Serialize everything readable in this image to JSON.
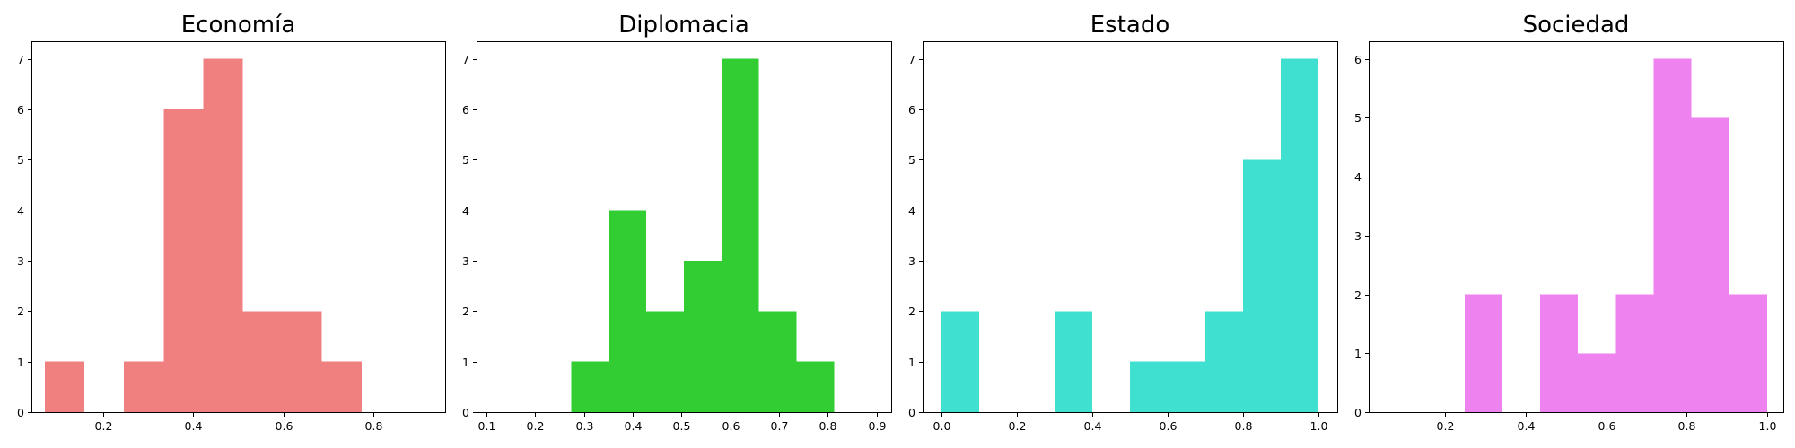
{
  "chart_data": [
    {
      "type": "bar",
      "title": "Economía",
      "color": "#f08080",
      "bins": [
        {
          "x0": 0.07,
          "x1": 0.158,
          "count": 1
        },
        {
          "x0": 0.158,
          "x1": 0.246,
          "count": 0
        },
        {
          "x0": 0.246,
          "x1": 0.334,
          "count": 1
        },
        {
          "x0": 0.334,
          "x1": 0.422,
          "count": 6
        },
        {
          "x0": 0.422,
          "x1": 0.51,
          "count": 7
        },
        {
          "x0": 0.51,
          "x1": 0.598,
          "count": 2
        },
        {
          "x0": 0.598,
          "x1": 0.686,
          "count": 2
        },
        {
          "x0": 0.686,
          "x1": 0.774,
          "count": 1
        }
      ],
      "xlim": [
        0.04,
        0.96
      ],
      "ylim": [
        0,
        7.35
      ],
      "xticks": [
        0.2,
        0.4,
        0.6,
        0.8
      ],
      "xtick_labels": [
        "0.2",
        "0.4",
        "0.6",
        "0.8"
      ],
      "yticks": [
        0,
        1,
        2,
        3,
        4,
        5,
        6,
        7
      ],
      "ytick_labels": [
        "0",
        "1",
        "2",
        "3",
        "4",
        "5",
        "6",
        "7"
      ]
    },
    {
      "type": "bar",
      "title": "Diplomacia",
      "color": "#32cd32",
      "bins": [
        {
          "x0": 0.274,
          "x1": 0.351,
          "count": 1
        },
        {
          "x0": 0.351,
          "x1": 0.428,
          "count": 4
        },
        {
          "x0": 0.428,
          "x1": 0.505,
          "count": 2
        },
        {
          "x0": 0.505,
          "x1": 0.582,
          "count": 3
        },
        {
          "x0": 0.582,
          "x1": 0.659,
          "count": 7
        },
        {
          "x0": 0.659,
          "x1": 0.736,
          "count": 2
        },
        {
          "x0": 0.736,
          "x1": 0.813,
          "count": 1
        }
      ],
      "xlim": [
        0.08,
        0.93
      ],
      "ylim": [
        0,
        7.35
      ],
      "xticks": [
        0.1,
        0.2,
        0.3,
        0.4,
        0.5,
        0.6,
        0.7,
        0.8,
        0.9
      ],
      "xtick_labels": [
        "0.1",
        "0.2",
        "0.3",
        "0.4",
        "0.5",
        "0.6",
        "0.7",
        "0.8",
        "0.9"
      ],
      "yticks": [
        0,
        1,
        2,
        3,
        4,
        5,
        6,
        7
      ],
      "ytick_labels": [
        "0",
        "1",
        "2",
        "3",
        "4",
        "5",
        "6",
        "7"
      ]
    },
    {
      "type": "bar",
      "title": "Estado",
      "color": "#40e0d0",
      "bins": [
        {
          "x0": 0.0,
          "x1": 0.1,
          "count": 2
        },
        {
          "x0": 0.1,
          "x1": 0.2,
          "count": 0
        },
        {
          "x0": 0.2,
          "x1": 0.3,
          "count": 0
        },
        {
          "x0": 0.3,
          "x1": 0.4,
          "count": 2
        },
        {
          "x0": 0.4,
          "x1": 0.5,
          "count": 0
        },
        {
          "x0": 0.5,
          "x1": 0.6,
          "count": 1
        },
        {
          "x0": 0.6,
          "x1": 0.7,
          "count": 1
        },
        {
          "x0": 0.7,
          "x1": 0.8,
          "count": 2
        },
        {
          "x0": 0.8,
          "x1": 0.9,
          "count": 5
        },
        {
          "x0": 0.9,
          "x1": 1.0,
          "count": 7
        }
      ],
      "xlim": [
        -0.05,
        1.05
      ],
      "ylim": [
        0,
        7.35
      ],
      "xticks": [
        0.0,
        0.2,
        0.4,
        0.6,
        0.8,
        1.0
      ],
      "xtick_labels": [
        "0.0",
        "0.2",
        "0.4",
        "0.6",
        "0.8",
        "1.0"
      ],
      "yticks": [
        0,
        1,
        2,
        3,
        4,
        5,
        6,
        7
      ],
      "ytick_labels": [
        "0",
        "1",
        "2",
        "3",
        "4",
        "5",
        "6",
        "7"
      ]
    },
    {
      "type": "bar",
      "title": "Sociedad",
      "color": "#ee82ee",
      "bins": [
        {
          "x0": 0.248,
          "x1": 0.342,
          "count": 2
        },
        {
          "x0": 0.342,
          "x1": 0.436,
          "count": 0
        },
        {
          "x0": 0.436,
          "x1": 0.53,
          "count": 2
        },
        {
          "x0": 0.53,
          "x1": 0.624,
          "count": 1
        },
        {
          "x0": 0.624,
          "x1": 0.718,
          "count": 2
        },
        {
          "x0": 0.718,
          "x1": 0.812,
          "count": 6
        },
        {
          "x0": 0.812,
          "x1": 0.906,
          "count": 5
        },
        {
          "x0": 0.906,
          "x1": 1.0,
          "count": 2
        }
      ],
      "xlim": [
        0.01,
        1.04
      ],
      "ylim": [
        0,
        6.3
      ],
      "xticks": [
        0.2,
        0.4,
        0.6,
        0.8,
        1.0
      ],
      "xtick_labels": [
        "0.2",
        "0.4",
        "0.6",
        "0.8",
        "1.0"
      ],
      "yticks": [
        0,
        1,
        2,
        3,
        4,
        5,
        6
      ],
      "ytick_labels": [
        "0",
        "1",
        "2",
        "3",
        "4",
        "5",
        "6"
      ]
    }
  ]
}
